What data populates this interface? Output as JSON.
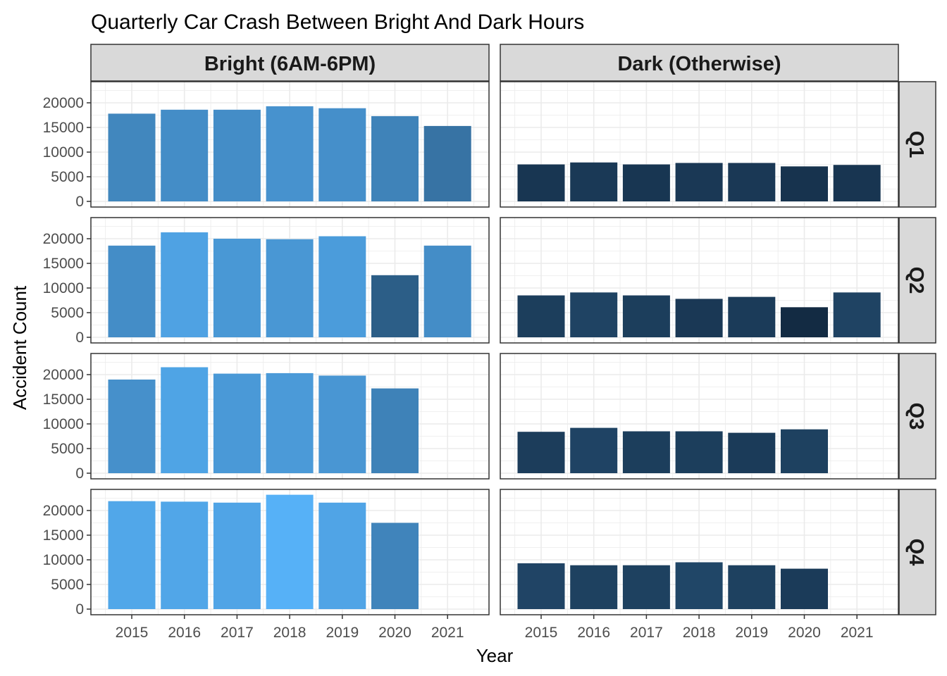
{
  "chart_data": {
    "type": "bar",
    "title": "Quarterly Car Crash Between Bright And Dark Hours",
    "xlabel": "Year",
    "ylabel": "Accident Count",
    "categories": [
      "2015",
      "2016",
      "2017",
      "2018",
      "2019",
      "2020",
      "2021"
    ],
    "yticks": [
      0,
      5000,
      10000,
      15000,
      20000
    ],
    "ylim": [
      0,
      24000
    ],
    "grid": true,
    "legend": "none",
    "fill_scale": {
      "low": "#132B43",
      "high": "#56B1F7"
    },
    "columns": [
      "Bright (6AM-6PM)",
      "Dark (Otherwise)"
    ],
    "rows": [
      "Q1",
      "Q2",
      "Q3",
      "Q4"
    ],
    "panels": [
      {
        "row": "Q1",
        "column": "Bright (6AM-6PM)",
        "values": [
          17800,
          18600,
          18600,
          19300,
          18900,
          17300,
          15300
        ]
      },
      {
        "row": "Q1",
        "column": "Dark (Otherwise)",
        "values": [
          7500,
          7900,
          7500,
          7800,
          7800,
          7100,
          7400
        ]
      },
      {
        "row": "Q2",
        "column": "Bright (6AM-6PM)",
        "values": [
          18600,
          21300,
          20000,
          19900,
          20500,
          12600,
          18600
        ]
      },
      {
        "row": "Q2",
        "column": "Dark (Otherwise)",
        "values": [
          8500,
          9100,
          8500,
          7800,
          8200,
          6100,
          9100
        ]
      },
      {
        "row": "Q3",
        "column": "Bright (6AM-6PM)",
        "values": [
          19000,
          21500,
          20200,
          20300,
          19800,
          17200,
          null
        ]
      },
      {
        "row": "Q3",
        "column": "Dark (Otherwise)",
        "values": [
          8400,
          9200,
          8500,
          8500,
          8200,
          8900,
          null
        ]
      },
      {
        "row": "Q4",
        "column": "Bright (6AM-6PM)",
        "values": [
          21900,
          21800,
          21600,
          23200,
          21600,
          17500,
          null
        ]
      },
      {
        "row": "Q4",
        "column": "Dark (Otherwise)",
        "values": [
          9300,
          8900,
          8900,
          9500,
          8900,
          8200,
          null
        ]
      }
    ]
  }
}
